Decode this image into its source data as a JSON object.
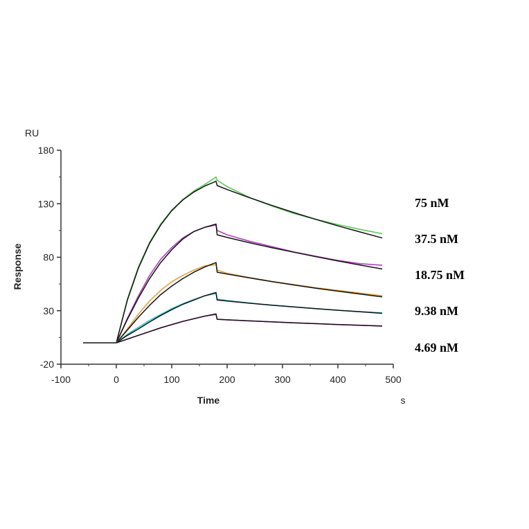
{
  "chart_data": {
    "type": "line",
    "title": "",
    "xlabel": "Time",
    "x_unit": "s",
    "ylabel": "Response",
    "y_unit": "RU",
    "xlim": [
      -100,
      500
    ],
    "ylim": [
      -20,
      180
    ],
    "xticks": [
      "-100",
      "0",
      "100",
      "200",
      "300",
      "400",
      "500"
    ],
    "yticks": [
      "-20",
      "30",
      "80",
      "130",
      "180"
    ],
    "xtick_values": [
      -100,
      0,
      100,
      200,
      300,
      400,
      500
    ],
    "ytick_values": [
      -20,
      30,
      80,
      130,
      180
    ],
    "grid": false,
    "baseline": {
      "t": [
        -60,
        0
      ],
      "values": [
        0,
        0
      ]
    },
    "time": [
      0,
      20,
      40,
      60,
      80,
      100,
      120,
      140,
      160,
      180,
      182,
      200,
      240,
      280,
      320,
      360,
      400,
      440,
      480
    ],
    "series": [
      {
        "name": "75 nM",
        "color": "#55cc55",
        "measured": [
          0,
          41,
          71,
          94,
          111,
          124,
          134,
          142,
          148,
          155,
          152,
          146,
          136,
          128,
          121,
          115.5,
          110.5,
          106,
          102
        ],
        "fit": [
          0,
          40,
          70,
          93,
          110,
          123.5,
          133.5,
          141,
          146.6,
          151,
          147,
          143.3,
          135.7,
          128.6,
          121.8,
          115.4,
          109.3,
          103.6,
          98
        ]
      },
      {
        "name": "37.5 nM",
        "color": "#b040c0",
        "measured": [
          0,
          23,
          44,
          63,
          78,
          89,
          98,
          104,
          108,
          110,
          105,
          101,
          95,
          90,
          85,
          81,
          77,
          74,
          72.5
        ],
        "fit": [
          0,
          22,
          42,
          60,
          75,
          87,
          97,
          104,
          108,
          111,
          101,
          98.5,
          93.6,
          89,
          84.7,
          80.5,
          76.5,
          72.7,
          69
        ]
      },
      {
        "name": "18.75 nM",
        "color": "#e0a040",
        "measured": [
          0,
          13,
          27,
          39,
          49,
          57,
          63,
          68,
          72,
          73,
          68,
          65,
          61,
          57.5,
          54.5,
          51.5,
          49,
          46.5,
          44
        ],
        "fit": [
          0,
          12,
          24,
          35,
          45,
          53,
          60,
          66,
          71,
          75,
          66,
          64.3,
          60.7,
          57.3,
          54.1,
          51.1,
          48.3,
          45.6,
          43
        ]
      },
      {
        "name": "9.38 nM",
        "color": "#30c8d8",
        "measured": [
          0,
          8,
          14.5,
          21,
          26.5,
          32,
          36.5,
          40.5,
          44,
          46,
          41,
          39.5,
          37.2,
          35.3,
          33.6,
          32,
          30.5,
          29.2,
          28
        ],
        "fit": [
          0,
          7,
          13,
          19.5,
          25.5,
          31,
          36,
          40,
          44,
          47,
          40,
          39,
          37,
          35.2,
          33.5,
          31.9,
          30.4,
          29,
          27.6
        ]
      },
      {
        "name": "4.69 nM",
        "color": "#ee22ee",
        "measured": [
          0,
          3.5,
          7,
          10.5,
          14,
          17,
          20,
          22.5,
          25,
          26.5,
          22,
          21.5,
          20.5,
          19.6,
          18.7,
          17.9,
          17.1,
          16.4,
          15.8
        ],
        "fit": [
          0,
          3.5,
          7,
          10.5,
          14,
          17,
          20,
          22.5,
          25,
          27,
          22,
          21.5,
          20.5,
          19.6,
          18.7,
          17.9,
          17.1,
          16.4,
          15.6
        ]
      }
    ],
    "fit_color": "#111111",
    "legend_placement": "right"
  }
}
